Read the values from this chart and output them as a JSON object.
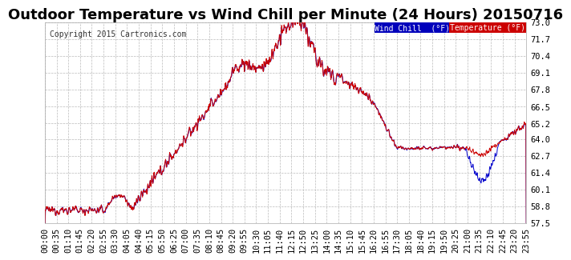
{
  "title": "Outdoor Temperature vs Wind Chill per Minute (24 Hours) 20150716",
  "copyright": "Copyright 2015 Cartronics.com",
  "ylim": [
    57.5,
    73.0
  ],
  "yticks": [
    57.5,
    58.8,
    60.1,
    61.4,
    62.7,
    64.0,
    65.2,
    66.5,
    67.8,
    69.1,
    70.4,
    71.7,
    73.0
  ],
  "bg_color": "#ffffff",
  "plot_bg_color": "#ffffff",
  "grid_color": "#bbbbbb",
  "temp_color": "#cc0000",
  "wind_color": "#0000cc",
  "legend_temp_bg": "#cc0000",
  "legend_wind_bg": "#0000bb",
  "title_fontsize": 13,
  "tick_fontsize": 7.5,
  "xtick_labels": [
    "00:00",
    "00:35",
    "01:10",
    "01:45",
    "02:20",
    "02:55",
    "03:30",
    "04:05",
    "04:40",
    "05:15",
    "05:50",
    "06:25",
    "07:00",
    "07:35",
    "08:10",
    "08:45",
    "09:20",
    "09:55",
    "10:30",
    "11:05",
    "11:40",
    "12:15",
    "12:50",
    "13:25",
    "14:00",
    "14:35",
    "15:10",
    "15:45",
    "16:20",
    "16:55",
    "17:30",
    "18:05",
    "18:40",
    "19:15",
    "19:50",
    "20:25",
    "21:00",
    "21:35",
    "22:10",
    "22:45",
    "23:20",
    "23:55"
  ]
}
